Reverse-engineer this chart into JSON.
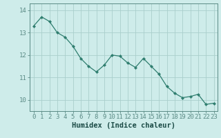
{
  "x": [
    0,
    1,
    2,
    3,
    4,
    5,
    6,
    7,
    8,
    9,
    10,
    11,
    12,
    13,
    14,
    15,
    16,
    17,
    18,
    19,
    20,
    21,
    22,
    23
  ],
  "y": [
    13.3,
    13.7,
    13.5,
    13.0,
    12.8,
    12.4,
    11.85,
    11.5,
    11.25,
    11.55,
    12.0,
    11.95,
    11.65,
    11.45,
    11.85,
    11.5,
    11.15,
    10.6,
    10.3,
    10.1,
    10.15,
    10.25,
    9.8,
    9.85
  ],
  "line_color": "#2e7d6e",
  "marker": "D",
  "marker_size": 2.2,
  "bg_color": "#ceecea",
  "grid_color": "#aacfcc",
  "xlabel": "Humidex (Indice chaleur)",
  "xlabel_fontsize": 7.5,
  "tick_fontsize": 6.5,
  "ylim": [
    9.5,
    14.3
  ],
  "yticks": [
    10,
    11,
    12,
    13,
    14
  ],
  "xticks": [
    0,
    1,
    2,
    3,
    4,
    5,
    6,
    7,
    8,
    9,
    10,
    11,
    12,
    13,
    14,
    15,
    16,
    17,
    18,
    19,
    20,
    21,
    22,
    23
  ],
  "spine_color": "#5a8a85",
  "tick_color": "#5a8a85",
  "label_color": "#1a4a45"
}
